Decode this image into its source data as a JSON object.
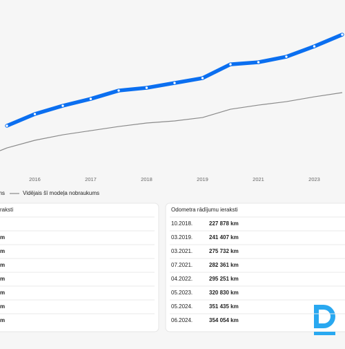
{
  "chart_data": {
    "type": "line",
    "categories": [
      null,
      "2016",
      null,
      "2017",
      null,
      "2018",
      null,
      "2019",
      null,
      "2021",
      null,
      "2023",
      null
    ],
    "series": [
      {
        "name": "ms",
        "color": "#0b6ff0",
        "values": [
          145300,
          171600,
          190200,
          205600,
          224200,
          230400,
          241200,
          252100,
          283000,
          287700,
          300100,
          323300,
          349600
        ]
      },
      {
        "name": "Vidējais šī modeļa nobraukums",
        "color": "#8a8a8a",
        "values": [
          95700,
          112800,
          125100,
          134400,
          143700,
          151500,
          156100,
          163800,
          182400,
          191700,
          199400,
          210300,
          219600
        ]
      }
    ],
    "ylim": [
      40000,
      390000
    ]
  },
  "left_table": {
    "title": "raksti",
    "rows": [
      "m",
      "m",
      "m",
      "m",
      "m",
      "m",
      "m"
    ]
  },
  "right_table": {
    "title": "Odometra rādījumu ieraksti",
    "rows": [
      [
        "10.2018.",
        "227 878 km"
      ],
      [
        "03.2019.",
        "241 407 km"
      ],
      [
        "03.2021.",
        "275 732 km"
      ],
      [
        "07.2021.",
        "282 361 km"
      ],
      [
        "04.2022.",
        "295 251 km"
      ],
      [
        "05.2023.",
        "320 830 km"
      ],
      [
        "05.2024.",
        "351 435 km"
      ],
      [
        "06.2024.",
        "354 054 km"
      ]
    ]
  }
}
